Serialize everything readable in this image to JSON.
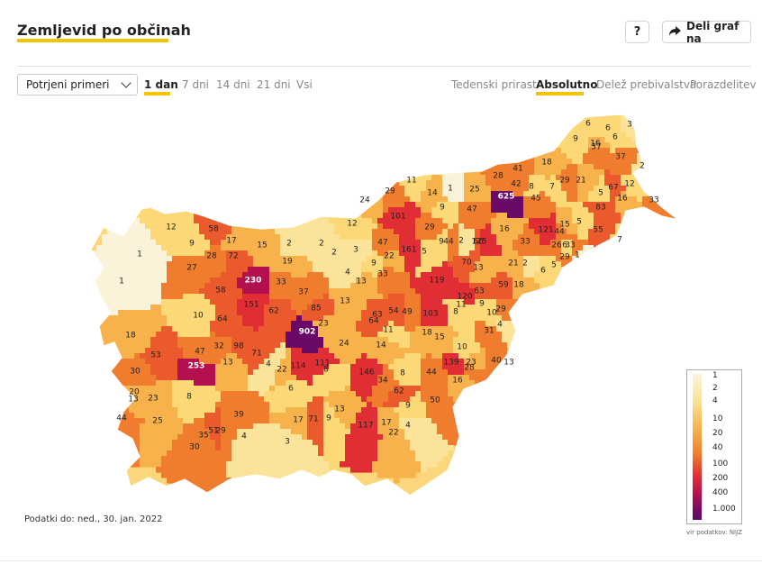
{
  "header": {
    "title": "Zemljevid po občinah",
    "help_label": "?",
    "share_label": "Deli graf na"
  },
  "controls": {
    "metric_select_value": "Potrjeni primeri",
    "period_tabs": [
      "1 dan",
      "7 dni",
      "14 dni",
      "21 dni",
      "Vsi"
    ],
    "active_period": "1 dan",
    "view_tabs": [
      "Tedenski prirast",
      "Absolutno",
      "Delež prebivalstva",
      "Porazdelitev"
    ],
    "active_view": "Absolutno"
  },
  "map": {
    "municipality_values": [
      "1",
      "1",
      "12",
      "9",
      "58",
      "17",
      "15",
      "2",
      "2",
      "3",
      "2",
      "12",
      "24",
      "29",
      "11",
      "14",
      "1",
      "25",
      "28",
      "41",
      "18",
      "6",
      "6",
      "3",
      "9",
      "16",
      "37",
      "6",
      "37",
      "2",
      "625",
      "45",
      "42",
      "8",
      "7",
      "29",
      "21",
      "67",
      "5",
      "12",
      "16",
      "33",
      "27",
      "28",
      "72",
      "19",
      "4",
      "13",
      "47",
      "101",
      "29",
      "9",
      "47",
      "16",
      "60",
      "125",
      "33",
      "44",
      "121",
      "6",
      "83",
      "15",
      "5",
      "55",
      "7",
      "58",
      "230",
      "33",
      "37",
      "9",
      "22",
      "33",
      "161",
      "5",
      "9",
      "2",
      "44",
      "26",
      "33",
      "1",
      "151",
      "62",
      "85",
      "13",
      "63",
      "54",
      "49",
      "103",
      "8",
      "119",
      "120",
      "63",
      "59",
      "18",
      "11",
      "21",
      "2",
      "5",
      "29",
      "6",
      "70",
      "13",
      "9",
      "10",
      "4",
      "10",
      "64",
      "902",
      "23",
      "24",
      "64",
      "14",
      "11",
      "18",
      "15",
      "10",
      "13",
      "40",
      "29",
      "31",
      "18",
      "53",
      "47",
      "32",
      "98",
      "71",
      "13",
      "4",
      "22",
      "114",
      "111",
      "8",
      "146",
      "34",
      "62",
      "8",
      "44",
      "9",
      "50",
      "139",
      "23",
      "16",
      "28",
      "30",
      "8",
      "253",
      "13",
      "44",
      "20",
      "23",
      "29",
      "39",
      "30",
      "25",
      "35",
      "51",
      "4",
      "6",
      "3",
      "17",
      "71",
      "9",
      "13",
      "117",
      "17",
      "22",
      "4"
    ],
    "date_note": "Podatki do: ned., 30. jan. 2022"
  },
  "legend": {
    "ticks": [
      "1",
      "2",
      "4",
      "10",
      "20",
      "40",
      "100",
      "200",
      "400",
      "1.000"
    ],
    "source": "vir podatkov: NIJZ"
  },
  "colors": {
    "accent": "#f5c400",
    "scale": [
      "#fbf3d9",
      "#fbe39a",
      "#f7b24b",
      "#ef7d2d",
      "#e12e34",
      "#b3104f",
      "#6b0a66"
    ]
  }
}
